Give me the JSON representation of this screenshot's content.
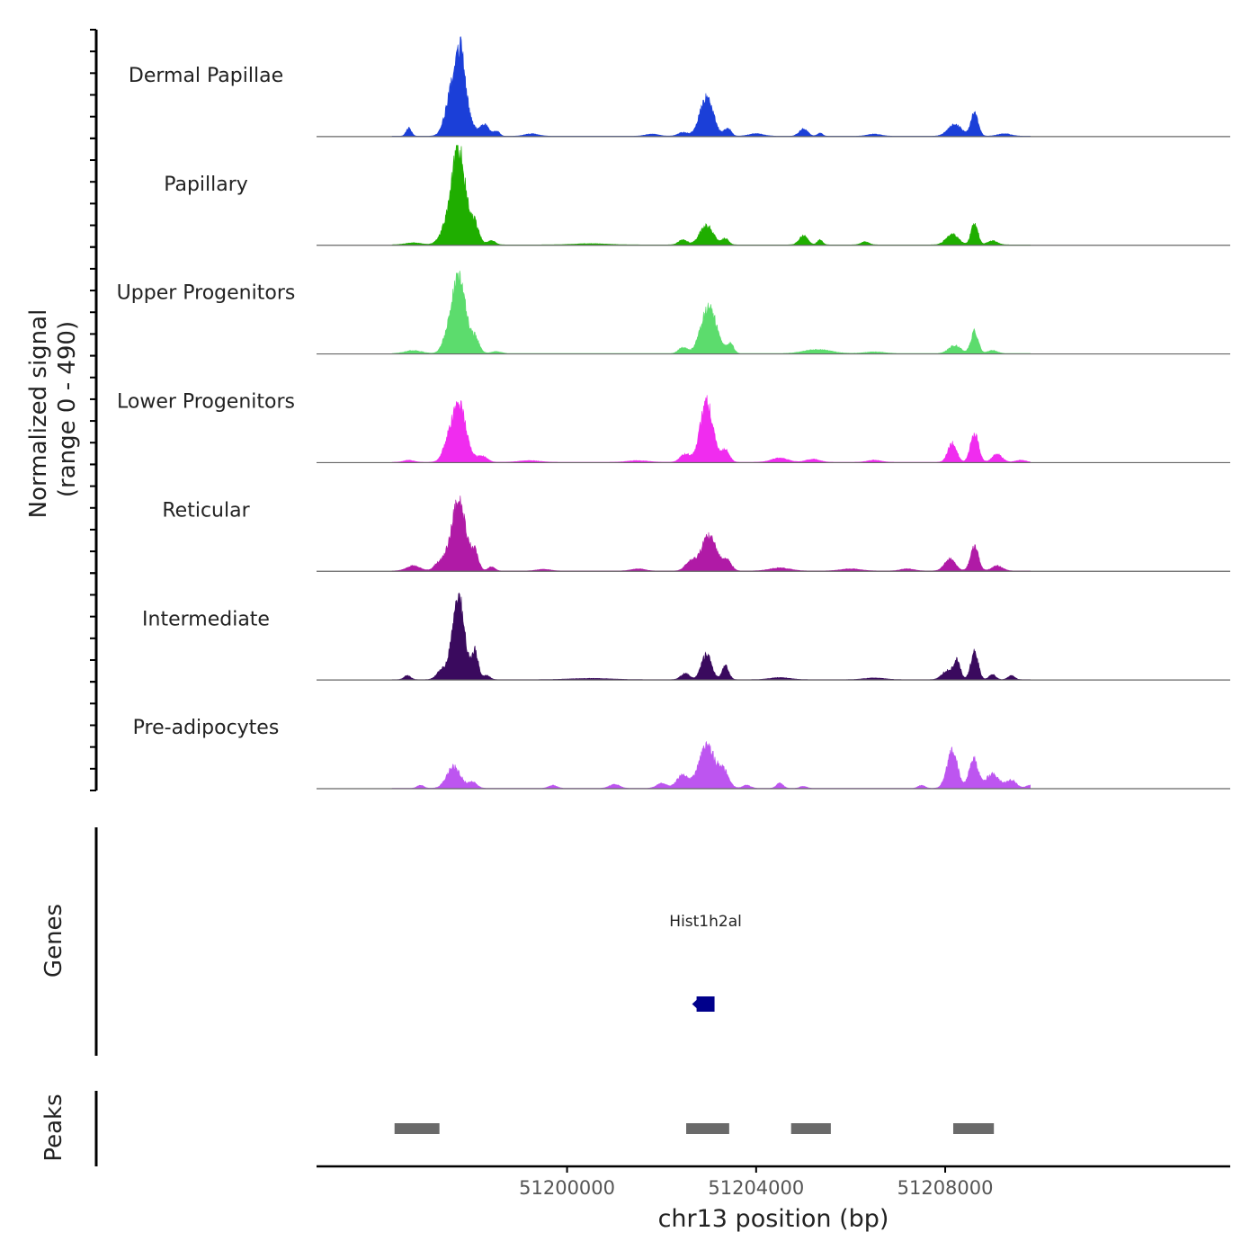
{
  "chart_data": {
    "type": "area",
    "title": "",
    "ylabel": "Normalized signal",
    "ylabel2": "(range 0 - 490)",
    "ylim": [
      0,
      490
    ],
    "xlabel": "chr13 position (bp)",
    "xlim": [
      51194700,
      51214030
    ],
    "x_ticks": [
      51200000,
      51204000,
      51208000
    ],
    "x_tick_labels": [
      "51200000",
      "51204000",
      "51208000"
    ],
    "signal_extent": [
      51196300,
      51209800
    ],
    "series": [
      {
        "name": "Dermal Papillae",
        "color": "#1b3fd8",
        "peaks": [
          {
            "pos": 51196650,
            "h": 40,
            "w": 80
          },
          {
            "pos": 51197520,
            "h": 90,
            "w": 180
          },
          {
            "pos": 51197720,
            "h": 340,
            "w": 220
          },
          {
            "pos": 51197760,
            "h": 140,
            "w": 60
          },
          {
            "pos": 51198250,
            "h": 55,
            "w": 150
          },
          {
            "pos": 51198520,
            "h": 25,
            "w": 80
          },
          {
            "pos": 51199250,
            "h": 12,
            "w": 200
          },
          {
            "pos": 51201800,
            "h": 10,
            "w": 200
          },
          {
            "pos": 51202450,
            "h": 18,
            "w": 150
          },
          {
            "pos": 51202950,
            "h": 190,
            "w": 200
          },
          {
            "pos": 51203400,
            "h": 40,
            "w": 100
          },
          {
            "pos": 51204000,
            "h": 12,
            "w": 220
          },
          {
            "pos": 51205000,
            "h": 35,
            "w": 130
          },
          {
            "pos": 51205350,
            "h": 15,
            "w": 80
          },
          {
            "pos": 51206500,
            "h": 10,
            "w": 200
          },
          {
            "pos": 51208200,
            "h": 60,
            "w": 200
          },
          {
            "pos": 51208620,
            "h": 115,
            "w": 110
          },
          {
            "pos": 51209250,
            "h": 12,
            "w": 200
          }
        ]
      },
      {
        "name": "Papillary",
        "color": "#1fae00",
        "peaks": [
          {
            "pos": 51196750,
            "h": 10,
            "w": 250
          },
          {
            "pos": 51197400,
            "h": 50,
            "w": 180
          },
          {
            "pos": 51197700,
            "h": 470,
            "w": 210
          },
          {
            "pos": 51198050,
            "h": 95,
            "w": 130
          },
          {
            "pos": 51198400,
            "h": 20,
            "w": 120
          },
          {
            "pos": 51200500,
            "h": 6,
            "w": 500
          },
          {
            "pos": 51202450,
            "h": 25,
            "w": 130
          },
          {
            "pos": 51202950,
            "h": 95,
            "w": 200
          },
          {
            "pos": 51203350,
            "h": 30,
            "w": 100
          },
          {
            "pos": 51205000,
            "h": 45,
            "w": 130
          },
          {
            "pos": 51205350,
            "h": 25,
            "w": 80
          },
          {
            "pos": 51206300,
            "h": 15,
            "w": 120
          },
          {
            "pos": 51208150,
            "h": 55,
            "w": 180
          },
          {
            "pos": 51208620,
            "h": 110,
            "w": 100
          },
          {
            "pos": 51209000,
            "h": 20,
            "w": 150
          }
        ]
      },
      {
        "name": "Upper Progenitors",
        "color": "#5cdc6d",
        "peaks": [
          {
            "pos": 51196750,
            "h": 15,
            "w": 250
          },
          {
            "pos": 51197700,
            "h": 380,
            "w": 210
          },
          {
            "pos": 51197450,
            "h": 40,
            "w": 150
          },
          {
            "pos": 51198050,
            "h": 70,
            "w": 130
          },
          {
            "pos": 51198500,
            "h": 10,
            "w": 150
          },
          {
            "pos": 51202450,
            "h": 30,
            "w": 130
          },
          {
            "pos": 51203000,
            "h": 230,
            "w": 230
          },
          {
            "pos": 51203450,
            "h": 50,
            "w": 100
          },
          {
            "pos": 51205300,
            "h": 20,
            "w": 400
          },
          {
            "pos": 51206500,
            "h": 8,
            "w": 300
          },
          {
            "pos": 51208200,
            "h": 40,
            "w": 180
          },
          {
            "pos": 51208620,
            "h": 110,
            "w": 110
          },
          {
            "pos": 51209000,
            "h": 15,
            "w": 150
          }
        ]
      },
      {
        "name": "Lower Progenitors",
        "color": "#f02cef",
        "peaks": [
          {
            "pos": 51196650,
            "h": 10,
            "w": 150
          },
          {
            "pos": 51197450,
            "h": 40,
            "w": 150
          },
          {
            "pos": 51197700,
            "h": 290,
            "w": 220
          },
          {
            "pos": 51198200,
            "h": 30,
            "w": 150
          },
          {
            "pos": 51199200,
            "h": 8,
            "w": 300
          },
          {
            "pos": 51201500,
            "h": 8,
            "w": 300
          },
          {
            "pos": 51202500,
            "h": 40,
            "w": 150
          },
          {
            "pos": 51202950,
            "h": 300,
            "w": 190
          },
          {
            "pos": 51203350,
            "h": 60,
            "w": 120
          },
          {
            "pos": 51204500,
            "h": 20,
            "w": 250
          },
          {
            "pos": 51205200,
            "h": 15,
            "w": 200
          },
          {
            "pos": 51206500,
            "h": 10,
            "w": 200
          },
          {
            "pos": 51208150,
            "h": 95,
            "w": 130
          },
          {
            "pos": 51208620,
            "h": 145,
            "w": 120
          },
          {
            "pos": 51209100,
            "h": 40,
            "w": 150
          },
          {
            "pos": 51209600,
            "h": 10,
            "w": 150
          }
        ]
      },
      {
        "name": "Reticular",
        "color": "#b01aa6",
        "peaks": [
          {
            "pos": 51196750,
            "h": 25,
            "w": 200
          },
          {
            "pos": 51197300,
            "h": 40,
            "w": 150
          },
          {
            "pos": 51197700,
            "h": 340,
            "w": 220
          },
          {
            "pos": 51198050,
            "h": 85,
            "w": 110
          },
          {
            "pos": 51198400,
            "h": 20,
            "w": 100
          },
          {
            "pos": 51199500,
            "h": 8,
            "w": 200
          },
          {
            "pos": 51201500,
            "h": 10,
            "w": 200
          },
          {
            "pos": 51202600,
            "h": 40,
            "w": 150
          },
          {
            "pos": 51203000,
            "h": 170,
            "w": 240
          },
          {
            "pos": 51203400,
            "h": 45,
            "w": 120
          },
          {
            "pos": 51204500,
            "h": 15,
            "w": 300
          },
          {
            "pos": 51206000,
            "h": 10,
            "w": 300
          },
          {
            "pos": 51207200,
            "h": 10,
            "w": 200
          },
          {
            "pos": 51208100,
            "h": 60,
            "w": 160
          },
          {
            "pos": 51208620,
            "h": 120,
            "w": 120
          },
          {
            "pos": 51209100,
            "h": 25,
            "w": 160
          }
        ]
      },
      {
        "name": "Intermediate",
        "color": "#3a0a5e",
        "peaks": [
          {
            "pos": 51196620,
            "h": 20,
            "w": 100
          },
          {
            "pos": 51197350,
            "h": 45,
            "w": 150
          },
          {
            "pos": 51197700,
            "h": 410,
            "w": 180
          },
          {
            "pos": 51198050,
            "h": 140,
            "w": 100
          },
          {
            "pos": 51198300,
            "h": 20,
            "w": 100
          },
          {
            "pos": 51200500,
            "h": 6,
            "w": 600
          },
          {
            "pos": 51202500,
            "h": 30,
            "w": 130
          },
          {
            "pos": 51202950,
            "h": 125,
            "w": 150
          },
          {
            "pos": 51203350,
            "h": 70,
            "w": 100
          },
          {
            "pos": 51204500,
            "h": 10,
            "w": 300
          },
          {
            "pos": 51206500,
            "h": 8,
            "w": 300
          },
          {
            "pos": 51208050,
            "h": 45,
            "w": 160
          },
          {
            "pos": 51208250,
            "h": 90,
            "w": 100
          },
          {
            "pos": 51208620,
            "h": 140,
            "w": 110
          },
          {
            "pos": 51209000,
            "h": 25,
            "w": 100
          },
          {
            "pos": 51209400,
            "h": 20,
            "w": 100
          }
        ]
      },
      {
        "name": "Pre-adipocytes",
        "color": "#bd55f0",
        "peaks": [
          {
            "pos": 51196900,
            "h": 15,
            "w": 100
          },
          {
            "pos": 51197600,
            "h": 110,
            "w": 200
          },
          {
            "pos": 51198000,
            "h": 30,
            "w": 130
          },
          {
            "pos": 51199700,
            "h": 15,
            "w": 120
          },
          {
            "pos": 51201000,
            "h": 20,
            "w": 150
          },
          {
            "pos": 51202000,
            "h": 25,
            "w": 150
          },
          {
            "pos": 51202450,
            "h": 65,
            "w": 180
          },
          {
            "pos": 51202950,
            "h": 220,
            "w": 220
          },
          {
            "pos": 51203300,
            "h": 90,
            "w": 160
          },
          {
            "pos": 51203800,
            "h": 15,
            "w": 120
          },
          {
            "pos": 51204500,
            "h": 25,
            "w": 100
          },
          {
            "pos": 51205000,
            "h": 10,
            "w": 100
          },
          {
            "pos": 51207500,
            "h": 15,
            "w": 100
          },
          {
            "pos": 51208150,
            "h": 180,
            "w": 160
          },
          {
            "pos": 51208600,
            "h": 145,
            "w": 130
          },
          {
            "pos": 51209000,
            "h": 70,
            "w": 200
          },
          {
            "pos": 51209400,
            "h": 40,
            "w": 150
          },
          {
            "pos": 51209800,
            "h": 15,
            "w": 120
          }
        ]
      }
    ],
    "genes": {
      "panel_label": "Genes",
      "items": [
        {
          "name": "Hist1h2al",
          "start": 51202740,
          "end": 51203120,
          "strand": "-",
          "color": "#00008b"
        }
      ]
    },
    "peaks_track": {
      "panel_label": "Peaks",
      "color": "#6a6a6a",
      "regions": [
        {
          "start": 51196350,
          "end": 51197300
        },
        {
          "start": 51202520,
          "end": 51203430
        },
        {
          "start": 51204740,
          "end": 51205580
        },
        {
          "start": 51208170,
          "end": 51209030
        }
      ]
    }
  }
}
